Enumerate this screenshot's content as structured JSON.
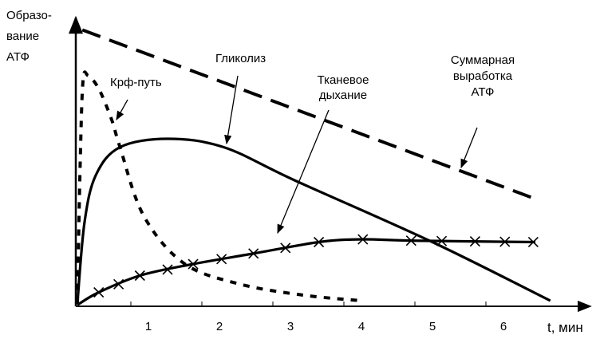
{
  "chart_data": {
    "type": "line",
    "ylabel_lines": [
      "Образо-",
      "вание",
      "АТФ"
    ],
    "xlabel": "t, мин",
    "x_ticks": [
      "1",
      "2",
      "3",
      "4",
      "5",
      "6"
    ],
    "xlim": [
      0,
      7
    ],
    "ylim": [
      0,
      100
    ],
    "grid": false,
    "series": [
      {
        "name": "Суммарная выработка АТФ",
        "label_lines": [
          "Суммарная",
          "выработка",
          "АТФ"
        ],
        "style": "dashed",
        "points": [
          [
            0.07,
            99
          ],
          [
            6.5,
            38
          ]
        ]
      },
      {
        "name": "Гликолиз",
        "label_lines": [
          "Гликолиз"
        ],
        "style": "solid",
        "points": [
          [
            0,
            1
          ],
          [
            0.1,
            30
          ],
          [
            0.26,
            47
          ],
          [
            0.6,
            57
          ],
          [
            1.27,
            60
          ],
          [
            2.06,
            57
          ],
          [
            3.07,
            45
          ],
          [
            5,
            23
          ],
          [
            6.66,
            2
          ]
        ]
      },
      {
        "name": "Крф-путь",
        "label_lines": [
          "Крф-путь"
        ],
        "style": "dotted",
        "points": [
          [
            0,
            1
          ],
          [
            0.04,
            52
          ],
          [
            0.08,
            81
          ],
          [
            0.15,
            82.6
          ],
          [
            0.3,
            78
          ],
          [
            0.48,
            67
          ],
          [
            0.6,
            57
          ],
          [
            0.93,
            32.6
          ],
          [
            1.5,
            15.4
          ],
          [
            2.28,
            8
          ],
          [
            3.18,
            4
          ],
          [
            4,
            2
          ]
        ]
      },
      {
        "name": "Тканевое дыхание",
        "label_lines": [
          "Тканевое",
          "дыхание"
        ],
        "style": "solid-x",
        "points": [
          [
            0,
            0.5
          ],
          [
            0.3,
            5
          ],
          [
            0.88,
            11
          ],
          [
            1.6,
            15
          ],
          [
            2.5,
            19
          ],
          [
            3.4,
            23
          ],
          [
            4,
            24
          ],
          [
            4.75,
            23.5
          ],
          [
            6.45,
            23
          ]
        ],
        "markers_t": [
          0.3,
          0.58,
          0.88,
          1.27,
          1.63,
          2.03,
          2.48,
          2.93,
          3.4,
          4.02,
          4.7,
          5.13,
          5.6,
          6.02,
          6.42
        ]
      }
    ]
  }
}
